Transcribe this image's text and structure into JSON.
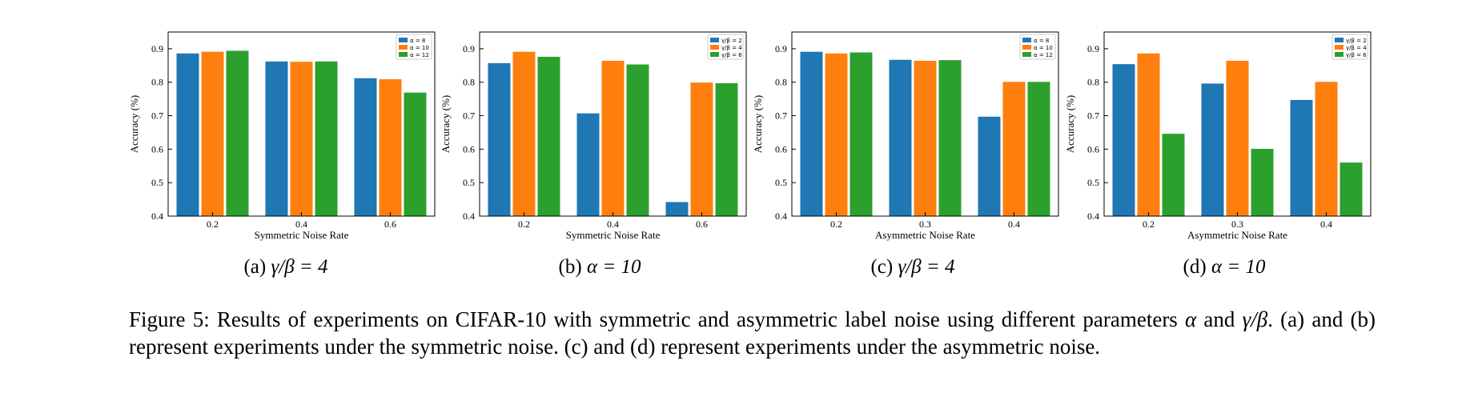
{
  "chart_data": [
    {
      "type": "bar",
      "ylabel": "Accuracy (%)",
      "xlabel": "Symmetric Noise Rate",
      "categories": [
        "0.2",
        "0.4",
        "0.6"
      ],
      "ylim": [
        0.4,
        0.95
      ],
      "yticks": [
        "0.4",
        "0.5",
        "0.6",
        "0.7",
        "0.8",
        "0.9"
      ],
      "legend_position": "top-right",
      "series": [
        {
          "name": "α = 8",
          "color": "#1f77b4",
          "values": [
            0.886,
            0.862,
            0.812
          ]
        },
        {
          "name": "α = 10",
          "color": "#ff7f0e",
          "values": [
            0.891,
            0.861,
            0.809
          ]
        },
        {
          "name": "α = 12",
          "color": "#2ca02c",
          "values": [
            0.894,
            0.862,
            0.769
          ]
        }
      ],
      "subcaption": {
        "tag": "(a) ",
        "math": "γ/β = 4"
      }
    },
    {
      "type": "bar",
      "ylabel": "Accuracy (%)",
      "xlabel": "Symmetric Noise Rate",
      "categories": [
        "0.2",
        "0.4",
        "0.6"
      ],
      "ylim": [
        0.4,
        0.95
      ],
      "yticks": [
        "0.4",
        "0.5",
        "0.6",
        "0.7",
        "0.8",
        "0.9"
      ],
      "legend_position": "top-right",
      "series": [
        {
          "name": "γ/β = 2",
          "color": "#1f77b4",
          "values": [
            0.857,
            0.707,
            0.442
          ]
        },
        {
          "name": "γ/β = 4",
          "color": "#ff7f0e",
          "values": [
            0.891,
            0.864,
            0.799
          ]
        },
        {
          "name": "γ/β = 6",
          "color": "#2ca02c",
          "values": [
            0.876,
            0.853,
            0.797
          ]
        }
      ],
      "subcaption": {
        "tag": "(b) ",
        "math": "α = 10"
      }
    },
    {
      "type": "bar",
      "ylabel": "Accuracy (%)",
      "xlabel": "Asymmetric Noise Rate",
      "categories": [
        "0.2",
        "0.3",
        "0.4"
      ],
      "ylim": [
        0.4,
        0.95
      ],
      "yticks": [
        "0.4",
        "0.5",
        "0.6",
        "0.7",
        "0.8",
        "0.9"
      ],
      "legend_position": "top-right",
      "series": [
        {
          "name": "α = 8",
          "color": "#1f77b4",
          "values": [
            0.891,
            0.867,
            0.697
          ]
        },
        {
          "name": "α = 10",
          "color": "#ff7f0e",
          "values": [
            0.886,
            0.864,
            0.801
          ]
        },
        {
          "name": "α = 12",
          "color": "#2ca02c",
          "values": [
            0.889,
            0.866,
            0.801
          ]
        }
      ],
      "subcaption": {
        "tag": "(c) ",
        "math": "γ/β = 4"
      }
    },
    {
      "type": "bar",
      "ylabel": "Accuracy (%)",
      "xlabel": "Asymmetric Noise Rate",
      "categories": [
        "0.2",
        "0.3",
        "0.4"
      ],
      "ylim": [
        0.4,
        0.95
      ],
      "yticks": [
        "0.4",
        "0.5",
        "0.6",
        "0.7",
        "0.8",
        "0.9"
      ],
      "legend_position": "top-right",
      "series": [
        {
          "name": "γ/β = 2",
          "color": "#1f77b4",
          "values": [
            0.854,
            0.796,
            0.747
          ]
        },
        {
          "name": "γ/β = 4",
          "color": "#ff7f0e",
          "values": [
            0.886,
            0.864,
            0.801
          ]
        },
        {
          "name": "γ/β = 6",
          "color": "#2ca02c",
          "values": [
            0.646,
            0.601,
            0.56
          ]
        }
      ],
      "subcaption": {
        "tag": "(d) ",
        "math": "α = 10"
      }
    }
  ],
  "caption": {
    "p1": "Figure 5: Results of experiments on CIFAR-10 with symmetric and asymmetric label noise using different parameters ",
    "m1": "α",
    "p2": " and ",
    "m2": "γ/β",
    "p3": ". (a) and (b) represent experiments under the symmetric noise. (c) and (d) represent experiments under the asymmetric noise."
  }
}
